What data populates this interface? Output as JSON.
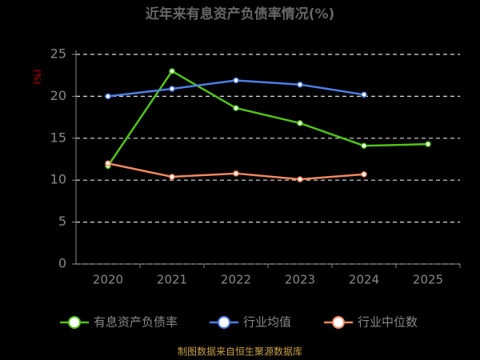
{
  "chart_data": {
    "type": "line",
    "title": "近年来有息资产负债率情况(%)",
    "y_label": "(%)",
    "categories": [
      "2020",
      "2021",
      "2022",
      "2023",
      "2024",
      "2025"
    ],
    "series": [
      {
        "name": "有息资产负债率",
        "color": "#52c41a",
        "values": [
          11.7,
          23.0,
          18.6,
          16.8,
          14.1,
          14.3
        ]
      },
      {
        "name": "行业均值",
        "color": "#4e7fe6",
        "values": [
          20.0,
          20.9,
          21.9,
          21.4,
          20.2,
          null
        ]
      },
      {
        "name": "行业中位数",
        "color": "#f08860",
        "values": [
          12.0,
          10.4,
          10.8,
          10.1,
          10.7,
          null
        ]
      }
    ],
    "ylim": [
      0,
      25
    ],
    "yticks": [
      0,
      5,
      10,
      15,
      20,
      25
    ],
    "grid": true,
    "source": "制图数据来自恒生聚源数据库"
  }
}
